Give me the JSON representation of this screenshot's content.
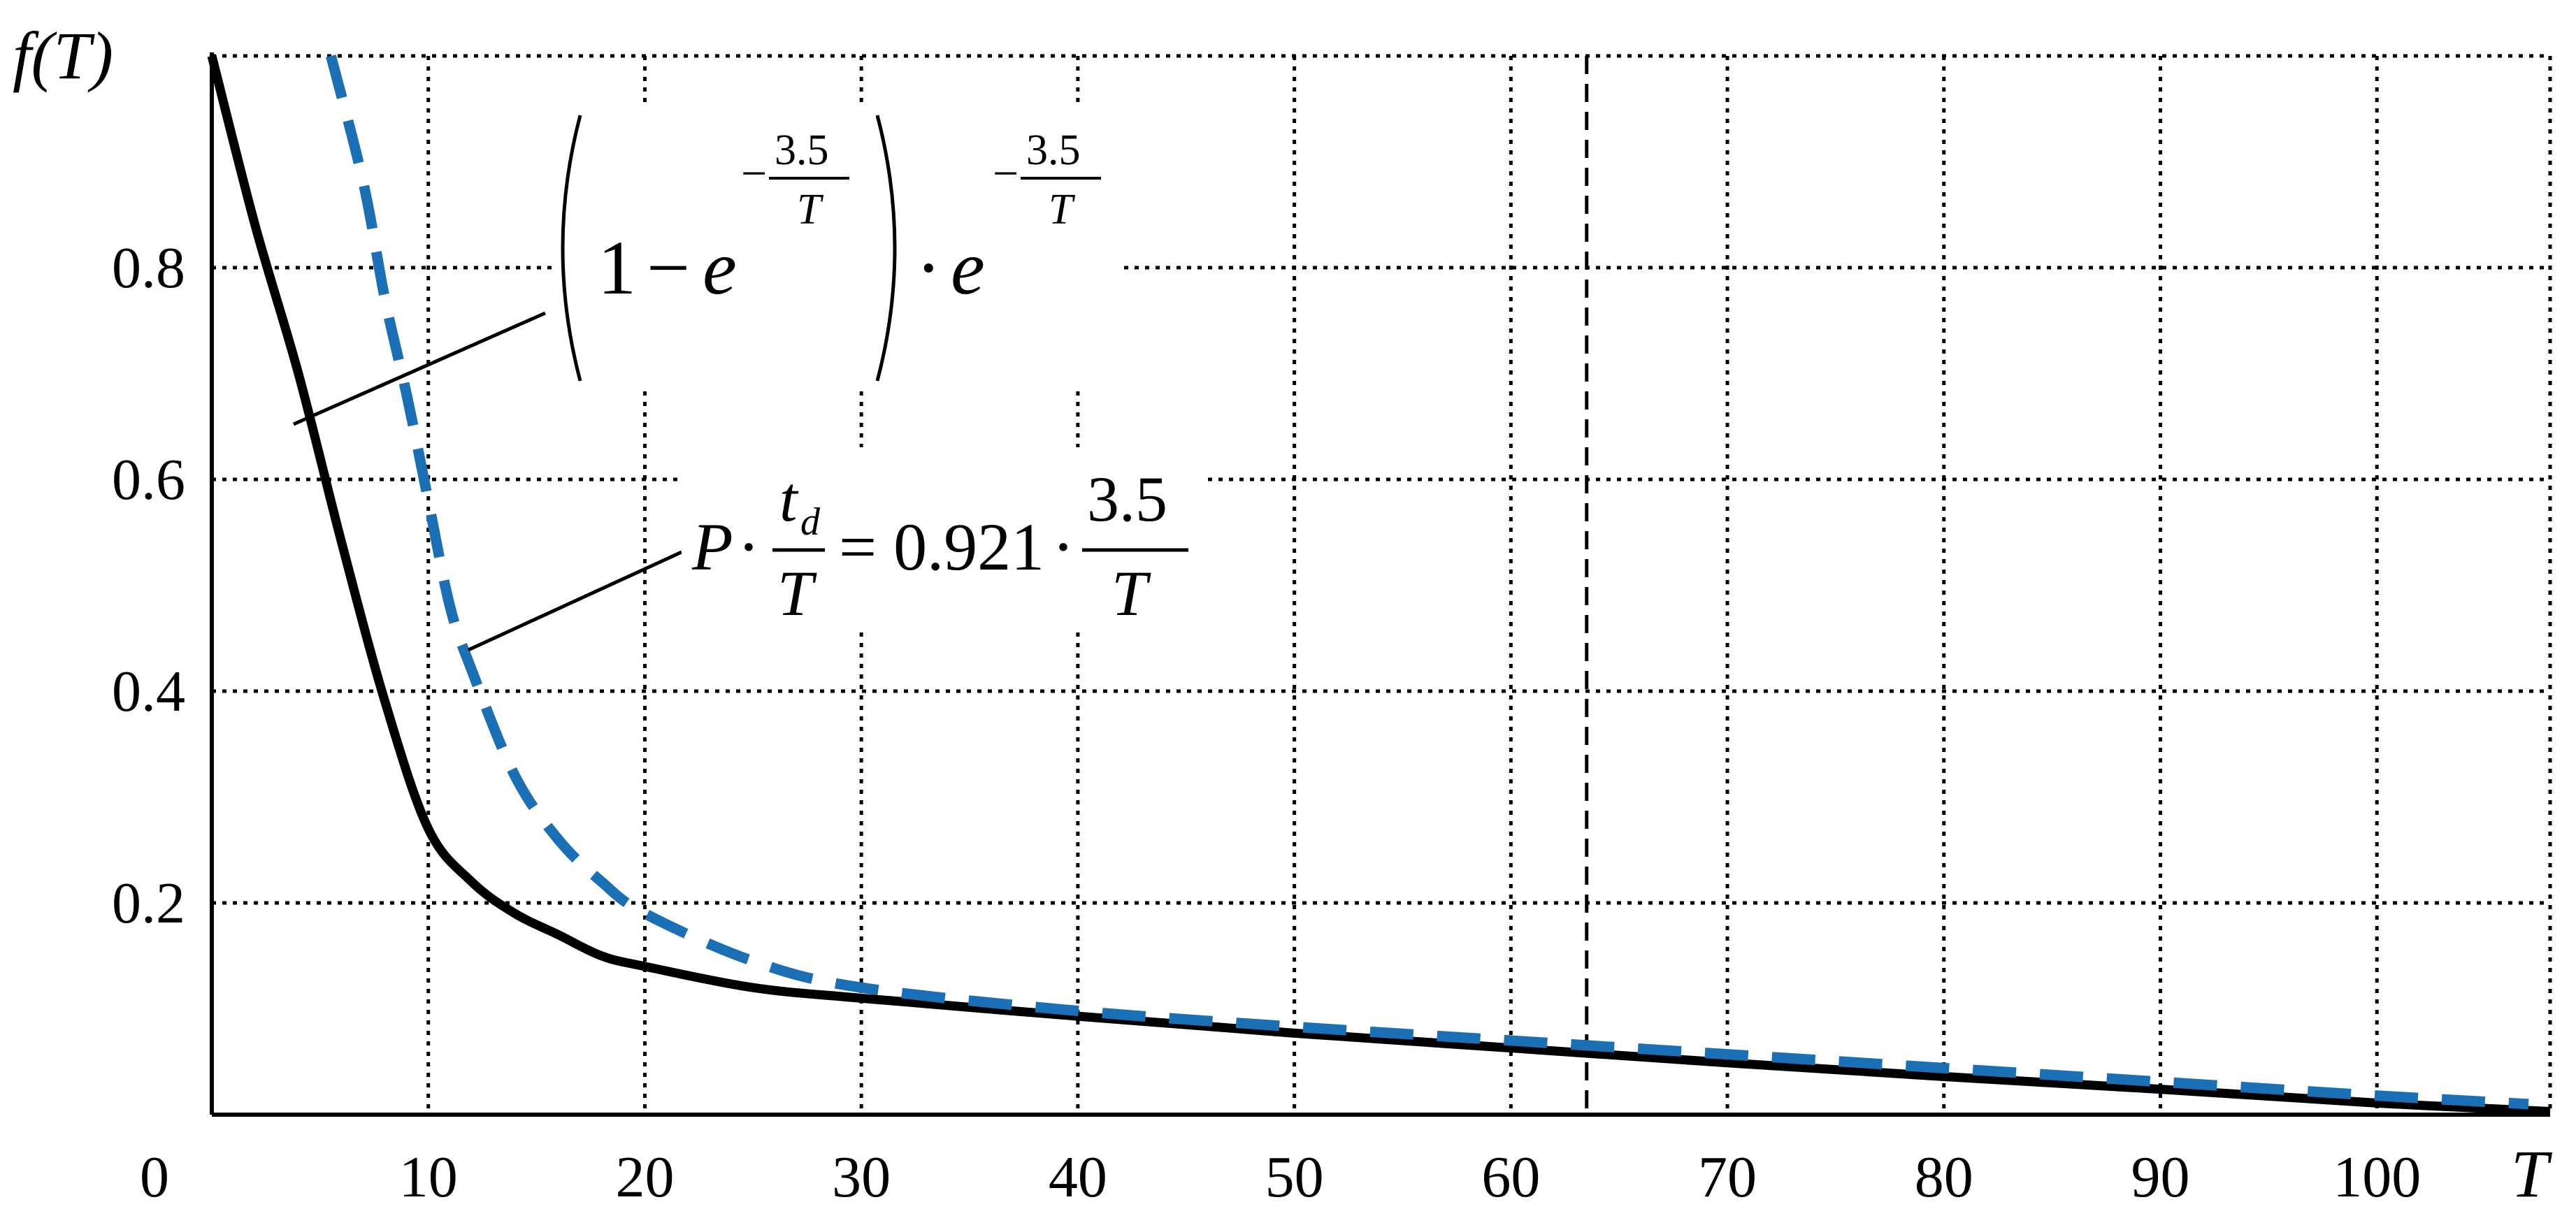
{
  "chart_data": {
    "type": "line",
    "title": "",
    "xlabel": "T",
    "ylabel": "f(T)",
    "xlim": [
      0,
      108
    ],
    "ylim": [
      0,
      1.0
    ],
    "x_ticks": [
      10,
      20,
      30,
      40,
      50,
      60,
      70,
      80,
      90,
      100
    ],
    "x_tick_labels": [
      "10",
      "20",
      "30",
      "40",
      "50",
      "60",
      "70",
      "80",
      "90",
      "100"
    ],
    "y_ticks": [
      0.2,
      0.4,
      0.6,
      0.8
    ],
    "y_tick_labels": [
      "0.2",
      "0.4",
      "0.6",
      "0.8"
    ],
    "origin_label": "0",
    "grid": true,
    "vertical_marker_x": 63.5,
    "series": [
      {
        "name": "",
        "style": "solid",
        "color": "#000000",
        "x": [
          0,
          2,
          4,
          6,
          8,
          10,
          12,
          14,
          16,
          18,
          20,
          25,
          30,
          40,
          50,
          60,
          70,
          80,
          90,
          100,
          108
        ],
        "y": [
          1.0,
          0.84,
          0.7,
          0.54,
          0.39,
          0.27,
          0.22,
          0.19,
          0.17,
          0.15,
          0.14,
          0.12,
          0.11,
          0.093,
          0.077,
          0.063,
          0.049,
          0.036,
          0.024,
          0.011,
          0.003
        ]
      },
      {
        "name": "",
        "style": "dashed",
        "color": "#1a6fb5",
        "x": [
          5.5,
          7,
          8,
          9,
          10,
          11,
          12,
          14,
          16,
          18,
          20,
          25,
          30,
          40,
          50,
          60,
          70,
          80,
          90,
          100,
          107
        ],
        "y": [
          1.0,
          0.88,
          0.77,
          0.68,
          0.58,
          0.48,
          0.42,
          0.32,
          0.26,
          0.22,
          0.19,
          0.145,
          0.12,
          0.098,
          0.083,
          0.07,
          0.057,
          0.044,
          0.031,
          0.018,
          0.01
        ]
      }
    ],
    "annotations": [
      {
        "id": "formula-1",
        "parts": {
          "one": "1",
          "minus": "−",
          "e": "e",
          "num": "3.5",
          "den": "T",
          "dot": "·"
        },
        "points_to": {
          "x": 4,
          "y": 0.65
        }
      },
      {
        "id": "formula-2",
        "parts": {
          "P": "P",
          "dot": "·",
          "t": "t",
          "d": "d",
          "T": "T",
          "eq": "= 0.921",
          "num": "3.5"
        },
        "points_to": {
          "x": 12,
          "y": 0.44
        }
      }
    ]
  }
}
